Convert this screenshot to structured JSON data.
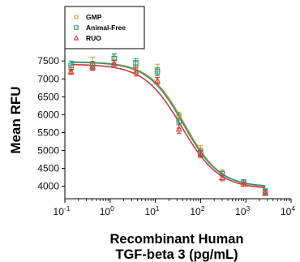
{
  "chart_data": {
    "type": "scatter",
    "title": "",
    "xlabel_lines": [
      "Recombinant Human",
      "TGF-beta 3 (pg/mL)"
    ],
    "ylabel": "Mean RFU",
    "xscale": "log",
    "xlim": [
      0.1,
      10000
    ],
    "ylim": [
      3650,
      7800
    ],
    "x_ticks": [
      {
        "value": 0.1,
        "base": "10",
        "exp": "-1"
      },
      {
        "value": 1,
        "base": "10",
        "exp": "0"
      },
      {
        "value": 10,
        "base": "10",
        "exp": "1"
      },
      {
        "value": 100,
        "base": "10",
        "exp": "2"
      },
      {
        "value": 1000,
        "base": "10",
        "exp": "3"
      },
      {
        "value": 10000,
        "base": "10",
        "exp": "4"
      }
    ],
    "y_ticks": [
      4000,
      4500,
      5000,
      5500,
      6000,
      6500,
      7000,
      7500
    ],
    "grid": false,
    "legend_position": "top-left",
    "x": [
      0.137,
      0.41,
      1.23,
      3.7,
      11.1,
      33.3,
      100,
      300,
      900,
      2700
    ],
    "series": [
      {
        "name": "GMP",
        "color": "#e6901e",
        "marker": "circle",
        "y": [
          7270,
          7430,
          7580,
          7330,
          7250,
          5960,
          5020,
          4390,
          4090,
          3850
        ],
        "err": [
          110,
          180,
          130,
          150,
          160,
          110,
          120,
          60,
          60,
          70
        ],
        "fit": {
          "top": 7480,
          "bottom": 3960,
          "ec50": 45,
          "hill": 1.1
        }
      },
      {
        "name": "Animal-Free",
        "color": "#1a9a8a",
        "marker": "square",
        "y": [
          7380,
          7380,
          7570,
          7450,
          7200,
          5820,
          4920,
          4350,
          4120,
          3860
        ],
        "err": [
          120,
          110,
          120,
          120,
          110,
          200,
          110,
          60,
          60,
          70
        ],
        "fit": {
          "top": 7470,
          "bottom": 3980,
          "ec50": 42,
          "hill": 1.1
        }
      },
      {
        "name": "RUO",
        "color": "#d63a3a",
        "marker": "triangle",
        "y": [
          7200,
          7340,
          7420,
          7200,
          6950,
          5600,
          4900,
          4240,
          4050,
          3810
        ],
        "err": [
          70,
          100,
          100,
          120,
          90,
          120,
          100,
          90,
          60,
          70
        ],
        "fit": {
          "top": 7410,
          "bottom": 3920,
          "ec50": 38,
          "hill": 1.05
        }
      }
    ]
  }
}
